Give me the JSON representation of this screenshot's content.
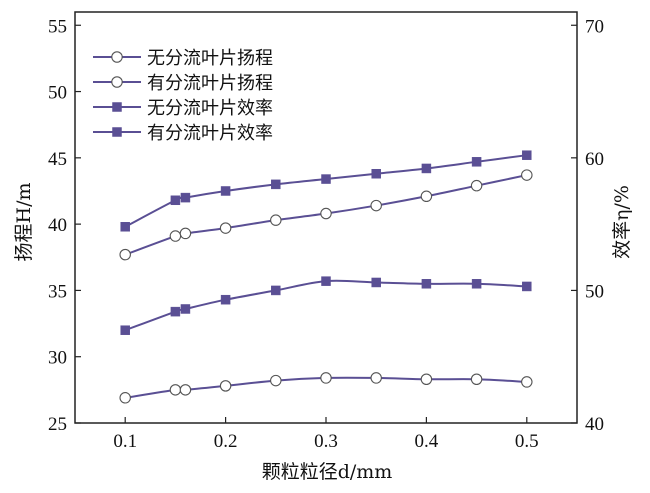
{
  "chart_data": {
    "type": "line",
    "xlabel": "颗粒粒径d/mm",
    "ylabel_left": "扬程H/m",
    "ylabel_right": "效率η/%",
    "x_ticks": [
      "0.1",
      "0.2",
      "0.3",
      "0.4",
      "0.5"
    ],
    "y_left_ticks": [
      "25",
      "30",
      "35",
      "40",
      "45",
      "50",
      "55"
    ],
    "y_right_ticks": [
      "40",
      "50",
      "60",
      "70"
    ],
    "xlim": [
      0.05,
      0.55
    ],
    "ylim_left": [
      25,
      56
    ],
    "ylim_right": [
      40,
      71
    ],
    "x": [
      0.1,
      0.15,
      0.16,
      0.2,
      0.25,
      0.3,
      0.35,
      0.4,
      0.45,
      0.5
    ],
    "legend_position": "top-left",
    "series": [
      {
        "name": "无分流叶片扬程",
        "axis": "left",
        "marker": "open-circle",
        "color": "#5a4f94",
        "values": [
          26.9,
          27.5,
          27.5,
          27.8,
          28.2,
          28.4,
          28.4,
          28.3,
          28.3,
          28.1
        ]
      },
      {
        "name": "有分流叶片扬程",
        "axis": "left",
        "marker": "open-circle",
        "color": "#5a4f94",
        "values": [
          37.7,
          39.1,
          39.3,
          39.7,
          40.3,
          40.8,
          41.4,
          42.1,
          42.9,
          43.7
        ]
      },
      {
        "name": "无分流叶片效率",
        "axis": "right",
        "marker": "filled-square",
        "color": "#5a4f94",
        "values": [
          47.0,
          48.4,
          48.6,
          49.3,
          50.0,
          50.7,
          50.6,
          50.5,
          50.5,
          50.3
        ]
      },
      {
        "name": "有分流叶片效率",
        "axis": "right",
        "marker": "filled-square",
        "color": "#5a4f94",
        "values": [
          54.8,
          56.8,
          57.0,
          57.5,
          58.0,
          58.4,
          58.8,
          59.2,
          59.7,
          60.2
        ]
      }
    ]
  }
}
